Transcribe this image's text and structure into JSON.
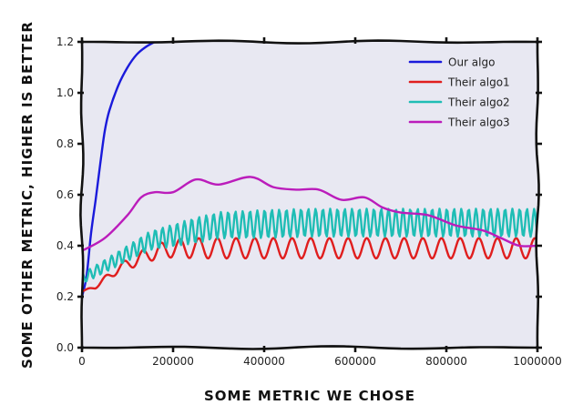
{
  "chart_data": {
    "type": "line",
    "style": "xkcd",
    "title": "",
    "xlabel": "SOME METRIC WE CHOSE",
    "ylabel": "SOME OTHER METRIC, HIGHER IS BETTER",
    "xlim": [
      0,
      1000000
    ],
    "ylim": [
      0,
      1.2
    ],
    "xticks": [
      0,
      200000,
      400000,
      600000,
      800000,
      1000000
    ],
    "xtick_labels": [
      "0",
      "200000",
      "400000",
      "600000",
      "800000",
      "1000000"
    ],
    "yticks": [
      0,
      0.2,
      0.4,
      0.6,
      0.8,
      1.0,
      1.2
    ],
    "ytick_labels": [
      "0.0",
      "0.2",
      "0.4",
      "0.6",
      "0.8",
      "1.0",
      "1.2"
    ],
    "legend_position": "top-right",
    "background": "#e8e8f2",
    "series": [
      {
        "name": "Our algo",
        "color": "#1a1adb",
        "x": [
          0,
          10000,
          20000,
          30000,
          40000,
          50000,
          60000,
          80000,
          100000,
          120000,
          140000,
          160000
        ],
        "y": [
          0.2,
          0.28,
          0.45,
          0.58,
          0.72,
          0.85,
          0.93,
          1.03,
          1.1,
          1.15,
          1.18,
          1.2
        ]
      },
      {
        "name": "Their algo1",
        "color": "#e01e1e",
        "model": {
          "base": [
            [
              0,
              0.22
            ],
            [
              30000,
              0.24
            ],
            [
              80000,
              0.31
            ],
            [
              150000,
              0.37
            ],
            [
              200000,
              0.39
            ],
            [
              1000000,
              0.39
            ]
          ],
          "amp": [
            [
              0,
              0.0
            ],
            [
              40000,
              0.01
            ],
            [
              150000,
              0.03
            ],
            [
              250000,
              0.04
            ],
            [
              1000000,
              0.04
            ]
          ],
          "period": 41000,
          "phase": 0
        }
      },
      {
        "name": "Their algo2",
        "color": "#1fbdb5",
        "model": {
          "base": [
            [
              0,
              0.27
            ],
            [
              50000,
              0.32
            ],
            [
              150000,
              0.42
            ],
            [
              300000,
              0.48
            ],
            [
              500000,
              0.49
            ],
            [
              1000000,
              0.49
            ]
          ],
          "amp": [
            [
              0,
              0.02
            ],
            [
              100000,
              0.03
            ],
            [
              250000,
              0.05
            ],
            [
              400000,
              0.055
            ],
            [
              1000000,
              0.055
            ]
          ],
          "period": 16000,
          "phase": 1.2
        }
      },
      {
        "name": "Their algo3",
        "color": "#bb1cbb",
        "x": [
          0,
          50000,
          100000,
          130000,
          160000,
          200000,
          250000,
          300000,
          370000,
          420000,
          470000,
          520000,
          570000,
          620000,
          660000,
          700000,
          760000,
          820000,
          880000,
          920000,
          960000,
          1000000
        ],
        "y": [
          0.38,
          0.43,
          0.52,
          0.59,
          0.61,
          0.61,
          0.66,
          0.64,
          0.67,
          0.63,
          0.62,
          0.62,
          0.58,
          0.59,
          0.55,
          0.53,
          0.52,
          0.48,
          0.46,
          0.43,
          0.4,
          0.4
        ]
      }
    ]
  }
}
